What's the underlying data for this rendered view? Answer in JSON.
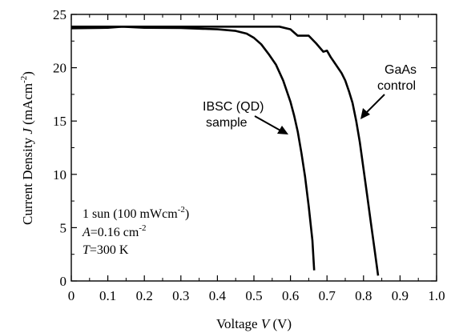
{
  "chart_data": {
    "type": "line",
    "xlabel_prefix": "Voltage ",
    "xlabel_var": "V",
    "xlabel_unit": " (V)",
    "ylabel_prefix": "Current Density ",
    "ylabel_var": "J",
    "ylabel_unit_base": " (mAcm",
    "ylabel_unit_sup": "-2",
    "ylabel_unit_end": ")",
    "xlim": [
      0,
      1.0
    ],
    "ylim": [
      0,
      25
    ],
    "x_ticks": [
      "0",
      "0.1",
      "0.2",
      "0.3",
      "0.4",
      "0.5",
      "0.6",
      "0.7",
      "0.8",
      "0.9",
      "1.0"
    ],
    "y_ticks": [
      "0",
      "5",
      "10",
      "15",
      "20",
      "25"
    ],
    "grid": false,
    "series": [
      {
        "name": "IBSC (QD) sample",
        "label_line1": "IBSC (QD)",
        "label_line2": "sample",
        "x": [
          0,
          0.1,
          0.14,
          0.2,
          0.3,
          0.4,
          0.45,
          0.48,
          0.5,
          0.52,
          0.54,
          0.56,
          0.58,
          0.6,
          0.61,
          0.62,
          0.63,
          0.64,
          0.65,
          0.66,
          0.665
        ],
        "y": [
          23.7,
          23.75,
          23.85,
          23.75,
          23.72,
          23.6,
          23.45,
          23.2,
          22.8,
          22.2,
          21.3,
          20.3,
          18.8,
          16.8,
          15.5,
          14.0,
          12.0,
          9.8,
          7.0,
          3.8,
          1.0
        ]
      },
      {
        "name": "GaAs control",
        "label_line1": "GaAs",
        "label_line2": "control",
        "x": [
          0,
          0.1,
          0.2,
          0.3,
          0.4,
          0.5,
          0.57,
          0.6,
          0.62,
          0.65,
          0.67,
          0.69,
          0.7,
          0.71,
          0.72,
          0.74,
          0.75,
          0.76,
          0.77,
          0.78,
          0.79,
          0.8,
          0.81,
          0.82,
          0.83,
          0.84
        ],
        "y": [
          23.85,
          23.85,
          23.85,
          23.85,
          23.85,
          23.85,
          23.85,
          23.6,
          23.0,
          23.0,
          22.3,
          21.5,
          21.6,
          21.0,
          20.5,
          19.5,
          18.8,
          17.8,
          16.7,
          15.0,
          13.0,
          10.5,
          8.0,
          5.5,
          3.0,
          0.5
        ]
      }
    ]
  },
  "annotation": {
    "line1_base": "1 sun (100 mWcm",
    "line1_sup": "-2",
    "line1_end": ")",
    "line2_var": "A",
    "line2_rest": "=0.16 cm",
    "line2_sup": "-2",
    "line3_var": "T",
    "line3_rest": "=300 K"
  }
}
